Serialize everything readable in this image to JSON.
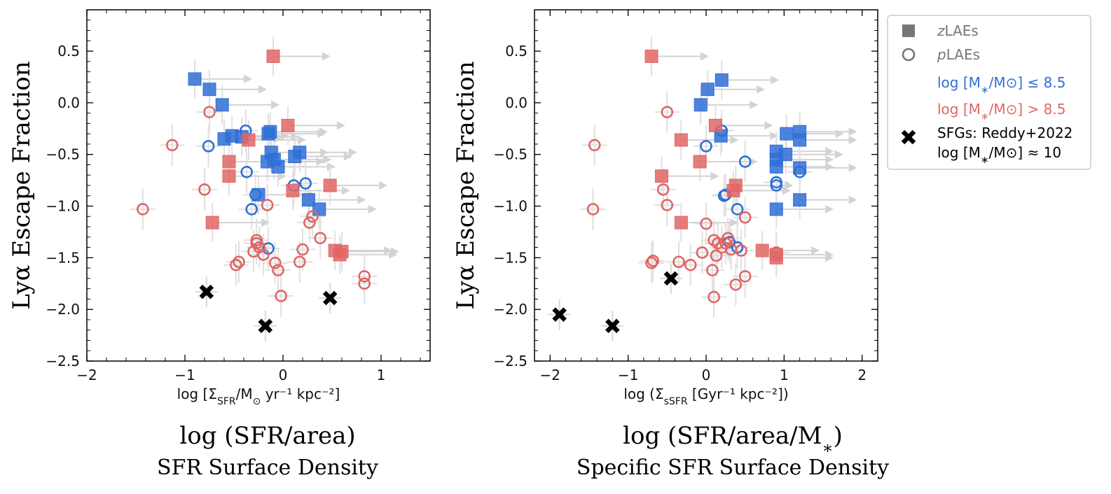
{
  "chart_data": [
    {
      "type": "scatter",
      "xlabel": "log [Σ_SFR/M_⊙ yr⁻¹ kpc⁻²]",
      "ylabel": "Lyα Escape Fraction",
      "caption_main": "log (SFR/area)",
      "caption_sub": "SFR Surface Density",
      "xlim": [
        -2,
        1.5
      ],
      "ylim": [
        -2.5,
        0.9
      ],
      "xticks": [
        "−2",
        "−1",
        "0",
        "1"
      ],
      "xtick_values": [
        -2,
        -1,
        0,
        1
      ],
      "yticks": [
        "0.5",
        "0.0",
        "−0.5",
        "−1.0",
        "−1.5",
        "−2.0",
        "−2.5"
      ],
      "ytick_values": [
        0.5,
        0.0,
        -0.5,
        -1.0,
        -1.5,
        -2.0,
        -2.5
      ],
      "series": [
        {
          "name": "zLAEs log [M*/M⊙] ≤ 8.5",
          "marker": "square",
          "color": "#2f6fd6",
          "points": [
            [
              -0.9,
              0.23
            ],
            [
              -0.75,
              0.13
            ],
            [
              -0.62,
              -0.02
            ],
            [
              -0.6,
              -0.35
            ],
            [
              -0.52,
              -0.32
            ],
            [
              -0.42,
              -0.33
            ],
            [
              -0.15,
              -0.3
            ],
            [
              -0.13,
              -0.28
            ],
            [
              -0.12,
              -0.48
            ],
            [
              -0.16,
              -0.57
            ],
            [
              -0.09,
              -0.55
            ],
            [
              -0.05,
              -0.62
            ],
            [
              0.12,
              -0.52
            ],
            [
              0.17,
              -0.48
            ],
            [
              -0.25,
              -0.89
            ],
            [
              0.26,
              -0.94
            ],
            [
              0.37,
              -1.03
            ]
          ]
        },
        {
          "name": "pLAEs log [M*/M⊙] ≤ 8.5",
          "marker": "circle",
          "color": "#2f6fd6",
          "points": [
            [
              -0.38,
              -0.27
            ],
            [
              -0.76,
              -0.42
            ],
            [
              -0.37,
              -0.67
            ],
            [
              -0.32,
              -1.03
            ],
            [
              -0.28,
              -0.89
            ],
            [
              -0.15,
              -1.41
            ],
            [
              0.11,
              -0.8
            ],
            [
              0.23,
              -0.78
            ]
          ]
        },
        {
          "name": "zLAEs log [M*/M⊙] > 8.5",
          "marker": "square",
          "color": "#e06666",
          "points": [
            [
              -0.1,
              0.45
            ],
            [
              -0.35,
              -0.36
            ],
            [
              0.05,
              -0.22
            ],
            [
              -0.55,
              -0.57
            ],
            [
              -0.55,
              -0.71
            ],
            [
              0.1,
              -0.85
            ],
            [
              0.48,
              -0.8
            ],
            [
              -0.72,
              -1.16
            ],
            [
              0.53,
              -1.43
            ],
            [
              0.58,
              -1.47
            ],
            [
              0.6,
              -1.44
            ]
          ]
        },
        {
          "name": "pLAEs log [M*/M⊙] > 8.5",
          "marker": "circle",
          "color": "#e06666",
          "points": [
            [
              -0.75,
              -0.09
            ],
            [
              -1.13,
              -0.41
            ],
            [
              -0.8,
              -0.84
            ],
            [
              -1.43,
              -1.03
            ],
            [
              -0.16,
              -0.99
            ],
            [
              -0.27,
              -1.33
            ],
            [
              -0.27,
              -1.36
            ],
            [
              -0.24,
              -1.4
            ],
            [
              -0.3,
              -1.44
            ],
            [
              -0.2,
              -1.47
            ],
            [
              -0.45,
              -1.54
            ],
            [
              -0.48,
              -1.57
            ],
            [
              -0.08,
              -1.55
            ],
            [
              -0.05,
              -1.62
            ],
            [
              -0.02,
              -1.87
            ],
            [
              0.2,
              -1.42
            ],
            [
              0.17,
              -1.54
            ],
            [
              0.27,
              -1.16
            ],
            [
              0.3,
              -1.1
            ],
            [
              0.38,
              -1.31
            ],
            [
              0.83,
              -1.68
            ],
            [
              0.83,
              -1.75
            ]
          ]
        },
        {
          "name": "SFGs: Reddy+2022 log [M*/M⊙] ≈ 10",
          "marker": "x",
          "color": "#000000",
          "points": [
            [
              -0.78,
              -1.83
            ],
            [
              -0.18,
              -2.16
            ],
            [
              0.48,
              -1.89
            ]
          ]
        }
      ]
    },
    {
      "type": "scatter",
      "xlabel": "log (Σ_sSFR [Gyr⁻¹ kpc⁻²])",
      "ylabel": "Lyα Escape Fraction",
      "caption_main": "log (SFR/area/M*)",
      "caption_sub": "Specific SFR Surface Density",
      "xlim": [
        -2.2,
        2.2
      ],
      "ylim": [
        -2.5,
        0.9
      ],
      "xticks": [
        "−2",
        "−1",
        "0",
        "1",
        "2"
      ],
      "xtick_values": [
        -2,
        -1,
        0,
        1,
        2
      ],
      "yticks": [
        "0.5",
        "0.0",
        "−0.5",
        "−1.0",
        "−1.5",
        "−2.0",
        "−2.5"
      ],
      "ytick_values": [
        0.5,
        0.0,
        -0.5,
        -1.0,
        -1.5,
        -2.0,
        -2.5
      ],
      "series": [
        {
          "name": "zLAEs log [M*/M⊙] ≤ 8.5",
          "marker": "square",
          "color": "#2f6fd6",
          "points": [
            [
              0.2,
              0.22
            ],
            [
              0.02,
              0.13
            ],
            [
              -0.07,
              -0.02
            ],
            [
              0.19,
              -0.32
            ],
            [
              1.03,
              -0.3
            ],
            [
              1.2,
              -0.28
            ],
            [
              1.2,
              -0.36
            ],
            [
              0.9,
              -0.47
            ],
            [
              0.9,
              -0.55
            ],
            [
              1.02,
              -0.5
            ],
            [
              0.9,
              -0.62
            ],
            [
              1.2,
              -0.63
            ],
            [
              0.9,
              -1.03
            ],
            [
              1.2,
              -0.94
            ]
          ]
        },
        {
          "name": "pLAEs log [M*/M⊙] ≤ 8.5",
          "marker": "circle",
          "color": "#2f6fd6",
          "points": [
            [
              0.2,
              -0.27
            ],
            [
              0.0,
              -0.42
            ],
            [
              0.5,
              -0.57
            ],
            [
              0.25,
              -0.89
            ],
            [
              0.23,
              -0.9
            ],
            [
              0.9,
              -0.77
            ],
            [
              0.9,
              -0.8
            ],
            [
              1.2,
              -0.67
            ],
            [
              0.4,
              -1.03
            ],
            [
              0.3,
              -1.35
            ],
            [
              0.4,
              -1.4
            ]
          ]
        },
        {
          "name": "zLAEs log [M*/M⊙] > 8.5",
          "marker": "square",
          "color": "#e06666",
          "points": [
            [
              -0.7,
              0.45
            ],
            [
              0.12,
              -0.22
            ],
            [
              -0.32,
              -0.36
            ],
            [
              -0.08,
              -0.57
            ],
            [
              -0.57,
              -0.71
            ],
            [
              0.38,
              -0.8
            ],
            [
              0.35,
              -0.85
            ],
            [
              -0.32,
              -1.16
            ],
            [
              0.72,
              -1.43
            ],
            [
              0.9,
              -1.47
            ],
            [
              0.9,
              -1.5
            ]
          ]
        },
        {
          "name": "pLAEs log [M*/M⊙] > 8.5",
          "marker": "circle",
          "color": "#e06666",
          "points": [
            [
              -0.5,
              -0.09
            ],
            [
              -1.43,
              -0.41
            ],
            [
              -0.55,
              -0.84
            ],
            [
              -0.5,
              -0.99
            ],
            [
              -1.45,
              -1.03
            ],
            [
              0.0,
              -1.17
            ],
            [
              0.5,
              -1.11
            ],
            [
              0.1,
              -1.33
            ],
            [
              0.15,
              -1.36
            ],
            [
              0.2,
              -1.4
            ],
            [
              0.28,
              -1.31
            ],
            [
              0.25,
              -1.36
            ],
            [
              0.32,
              -1.42
            ],
            [
              0.45,
              -1.43
            ],
            [
              -0.05,
              -1.45
            ],
            [
              0.13,
              -1.48
            ],
            [
              -0.35,
              -1.54
            ],
            [
              -0.2,
              -1.57
            ],
            [
              -0.68,
              -1.53
            ],
            [
              -0.7,
              -1.55
            ],
            [
              0.08,
              -1.62
            ],
            [
              0.38,
              -1.76
            ],
            [
              0.5,
              -1.68
            ],
            [
              0.1,
              -1.88
            ],
            [
              0.9,
              -1.45
            ]
          ]
        },
        {
          "name": "SFGs: Reddy+2022 log [M*/M⊙] ≈ 10",
          "marker": "x",
          "color": "#000000",
          "points": [
            [
              -1.88,
              -2.05
            ],
            [
              -1.2,
              -2.16
            ],
            [
              -0.45,
              -1.7
            ]
          ]
        }
      ]
    }
  ],
  "legend": {
    "placement": "right",
    "items": [
      {
        "marker": "square",
        "color": "#777777",
        "label": "zLAEs"
      },
      {
        "marker": "circle",
        "color": "#777777",
        "label": "pLAEs"
      },
      {
        "marker": "none",
        "color": "#2f6fd6",
        "label": "log [M*/M⊙] ≤ 8.5"
      },
      {
        "marker": "none",
        "color": "#e06666",
        "label": "log [M*/M⊙] > 8.5"
      },
      {
        "marker": "x",
        "color": "#000000",
        "label": "SFGs: Reddy+2022",
        "label2": "log [M*/M⊙] ≈ 10"
      }
    ]
  }
}
